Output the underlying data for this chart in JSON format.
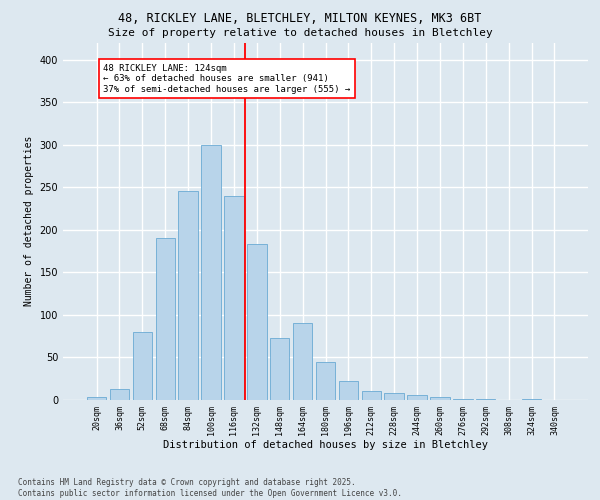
{
  "title_line1": "48, RICKLEY LANE, BLETCHLEY, MILTON KEYNES, MK3 6BT",
  "title_line2": "Size of property relative to detached houses in Bletchley",
  "xlabel": "Distribution of detached houses by size in Bletchley",
  "ylabel": "Number of detached properties",
  "footer": "Contains HM Land Registry data © Crown copyright and database right 2025.\nContains public sector information licensed under the Open Government Licence v3.0.",
  "categories": [
    "20sqm",
    "36sqm",
    "52sqm",
    "68sqm",
    "84sqm",
    "100sqm",
    "116sqm",
    "132sqm",
    "148sqm",
    "164sqm",
    "180sqm",
    "196sqm",
    "212sqm",
    "228sqm",
    "244sqm",
    "260sqm",
    "276sqm",
    "292sqm",
    "308sqm",
    "324sqm",
    "340sqm"
  ],
  "values": [
    3,
    13,
    80,
    190,
    245,
    300,
    240,
    183,
    73,
    90,
    45,
    22,
    10,
    8,
    6,
    3,
    1,
    1,
    0,
    1,
    0
  ],
  "bar_color": "#b8d4ea",
  "bar_edge_color": "#6aaad4",
  "property_label": "48 RICKLEY LANE: 124sqm",
  "annotation_line1": "← 63% of detached houses are smaller (941)",
  "annotation_line2": "37% of semi-detached houses are larger (555) →",
  "vline_color": "red",
  "bg_color": "#dde8f0",
  "plot_bg_color": "#dde8f0",
  "ylim": [
    0,
    420
  ],
  "yticks": [
    0,
    50,
    100,
    150,
    200,
    250,
    300,
    350,
    400
  ],
  "grid_color": "white",
  "vline_index": 6.5
}
